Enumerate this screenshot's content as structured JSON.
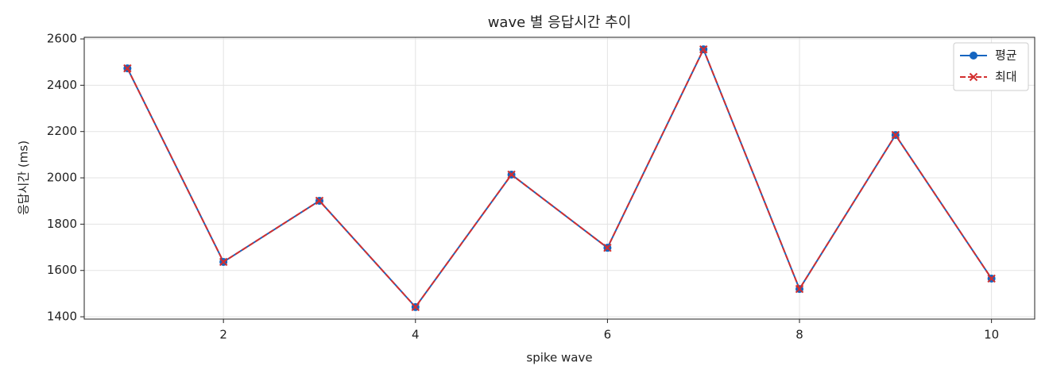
{
  "chart_data": {
    "type": "line",
    "title": "wave 별 응답시간 추이",
    "x_label": "spike wave",
    "y_label": "응답시간 (ms)",
    "x": [
      1,
      2,
      3,
      4,
      5,
      6,
      7,
      8,
      9,
      10
    ],
    "series": [
      {
        "name": "평균",
        "color": "#1565c0",
        "marker": "o",
        "linestyle": "solid",
        "values": [
          2473,
          1637,
          1901,
          1442,
          2014,
          1698,
          2555,
          1520,
          2185,
          1565
        ]
      },
      {
        "name": "최대",
        "color": "#d32f2f",
        "marker": "x",
        "linestyle": "dashed",
        "values": [
          2473,
          1637,
          1901,
          1442,
          2014,
          1698,
          2555,
          1520,
          2185,
          1565
        ]
      }
    ],
    "xlim": [
      0.55,
      10.45
    ],
    "xticks": [
      2,
      4,
      6,
      8,
      10
    ],
    "ylim": [
      1390,
      2607
    ],
    "yticks": [
      1400,
      1600,
      1800,
      2000,
      2200,
      2400,
      2600
    ],
    "grid": true,
    "legend": "upper right"
  }
}
